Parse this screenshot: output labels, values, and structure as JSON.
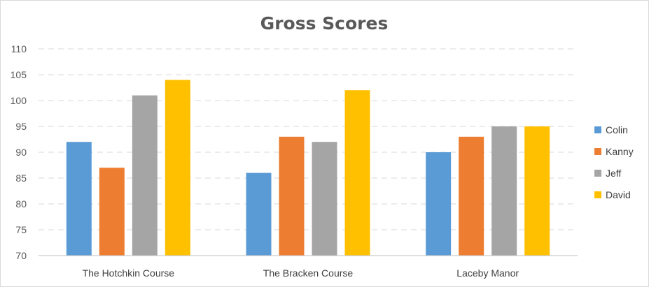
{
  "chart_data": {
    "type": "bar",
    "title": "Gross Scores",
    "xlabel": "",
    "ylabel": "",
    "categories": [
      "The Hotchkin Course",
      "The Bracken Course",
      "Laceby Manor"
    ],
    "series": [
      {
        "name": "Colin",
        "values": [
          92,
          86,
          90
        ],
        "color": "#5b9bd5"
      },
      {
        "name": "Kanny",
        "values": [
          87,
          93,
          93
        ],
        "color": "#ed7d31"
      },
      {
        "name": "Jeff",
        "values": [
          101,
          92,
          95
        ],
        "color": "#a5a5a5"
      },
      {
        "name": "David",
        "values": [
          104,
          102,
          95
        ],
        "color": "#ffc000"
      }
    ],
    "ylim": [
      70,
      110
    ],
    "yticks": [
      70,
      75,
      80,
      85,
      90,
      95,
      100,
      105,
      110
    ],
    "grid": true,
    "legend_position": "right"
  }
}
